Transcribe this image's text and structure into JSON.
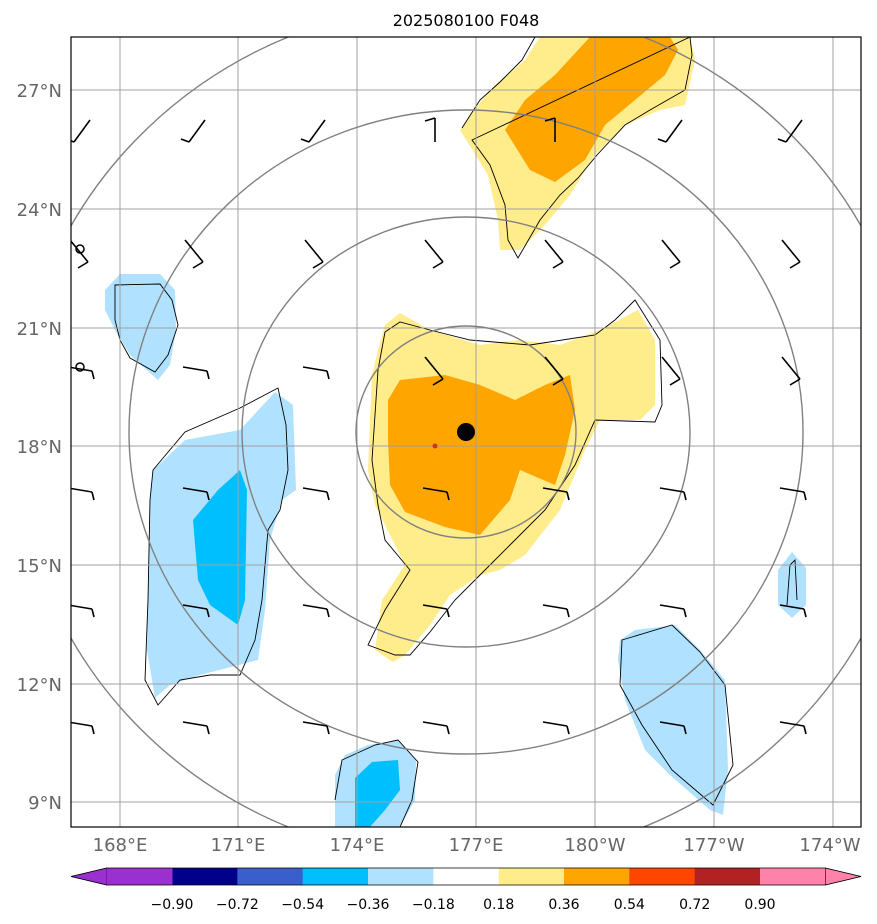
{
  "title": "2025080100 F048",
  "map": {
    "lon_labels": [
      "168°E",
      "171°E",
      "174°E",
      "177°E",
      "180°W",
      "177°W",
      "174°W"
    ],
    "lat_labels": [
      "27°N",
      "24°N",
      "21°N",
      "18°N",
      "15°N",
      "12°N",
      "9°N"
    ],
    "extent": {
      "lon": [
        166.8,
        186.8
      ],
      "lat": [
        8.4,
        28.4
      ]
    },
    "gridlines": true,
    "storm_center": {
      "lon": 176.8,
      "lat": 18.4
    },
    "range_rings": "concentric circles around storm center",
    "wind_barbs": "black barbs on a regular grid"
  },
  "colorbar": {
    "labels": [
      "−0.90",
      "−0.72",
      "−0.54",
      "−0.36",
      "−0.18",
      "0.18",
      "0.36",
      "0.54",
      "0.72",
      "0.90"
    ],
    "levels": [
      -0.9,
      -0.72,
      -0.54,
      -0.36,
      -0.18,
      0.18,
      0.36,
      0.54,
      0.72,
      0.9
    ],
    "colors": [
      "#9b30d0",
      "#00008b",
      "#3a5fcd",
      "#00bfff",
      "#b0e2ff",
      "#ffffff",
      "#ffec8b",
      "#ffa500",
      "#ff4500",
      "#b22222",
      "#ff82ab"
    ],
    "extend": "both"
  },
  "colors": {
    "light_blue": "#b0e2ff",
    "deep_sky_blue": "#00bfff",
    "light_yellow": "#ffec8b",
    "orange": "#ffa500",
    "grid": "#a0a0a0",
    "ring": "#808080"
  }
}
